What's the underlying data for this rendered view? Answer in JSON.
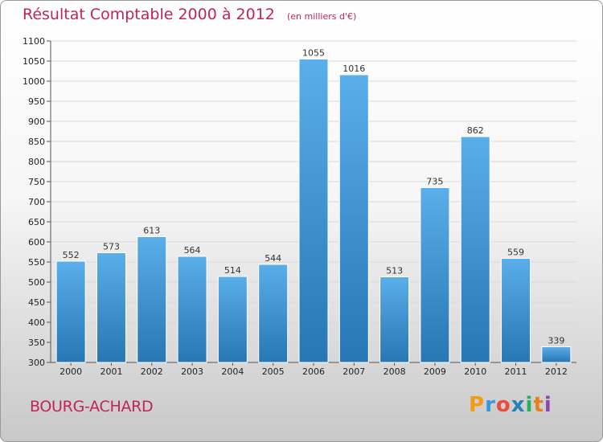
{
  "header": {
    "title": "Résultat Comptable 2000 à 2012",
    "unit": "(en milliers d'€)"
  },
  "place": "BOURG-ACHARD",
  "brand": {
    "letters": [
      "P",
      "r",
      "o",
      "x",
      "i",
      "t",
      "i"
    ],
    "colors": [
      "#f39c12",
      "#3498db",
      "#e74c3c",
      "#2980b9",
      "#27ae60",
      "#e67e22",
      "#8e44ad"
    ]
  },
  "colors": {
    "bar_light": "#5aaeea",
    "bar_dark": "#2677b3",
    "grid": "#d9d9d9",
    "title": "#c0245a"
  },
  "chart_data": {
    "type": "bar",
    "title": "Résultat Comptable 2000 à 2012",
    "subtitle": "(en milliers d'€)",
    "xlabel": "",
    "ylabel": "",
    "categories": [
      "2000",
      "2001",
      "2002",
      "2003",
      "2004",
      "2005",
      "2006",
      "2007",
      "2008",
      "2009",
      "2010",
      "2011",
      "2012"
    ],
    "values": [
      552,
      573,
      613,
      564,
      514,
      544,
      1055,
      1016,
      513,
      735,
      862,
      559,
      339
    ],
    "ylim": [
      300,
      1100
    ],
    "yticks": [
      300,
      350,
      400,
      450,
      500,
      550,
      600,
      650,
      700,
      750,
      800,
      850,
      900,
      950,
      1000,
      1050,
      1100
    ],
    "grid": true,
    "legend": "none"
  }
}
